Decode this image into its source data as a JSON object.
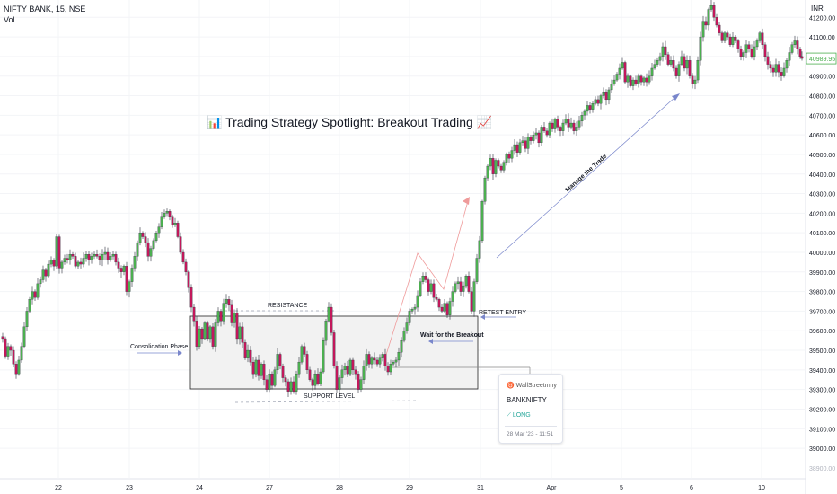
{
  "header": {
    "symbol": "NIFTY BANK, 15, NSE",
    "indicator": "Vol"
  },
  "currency_label": "INR",
  "chart_data": {
    "type": "candlestick",
    "title": "📊 Trading Strategy Spotlight: Breakout Trading 📈",
    "x_tick_labels": [
      "22",
      "23",
      "24",
      "27",
      "28",
      "29",
      "31",
      "Apr",
      "5",
      "6",
      "10"
    ],
    "y_ticks": [
      39000,
      39100,
      39200,
      39300,
      39400,
      39500,
      39600,
      39700,
      39800,
      39900,
      40000,
      40100,
      40200,
      40300,
      40400,
      40500,
      40600,
      40700,
      40800,
      40900,
      41000,
      41100,
      41200
    ],
    "y_bottom_label": "38900.00",
    "ylim": [
      38895,
      41270
    ],
    "grid": true,
    "last_price": "40989.95",
    "up_color": "#4caf50",
    "down_color": "#c2185b",
    "path": [
      [
        0,
        39570
      ],
      [
        3,
        39560
      ],
      [
        6,
        39470
      ],
      [
        9,
        39520
      ],
      [
        12,
        39500
      ],
      [
        15,
        39430
      ],
      [
        18,
        39380
      ],
      [
        21,
        39450
      ],
      [
        24,
        39520
      ],
      [
        27,
        39620
      ],
      [
        30,
        39700
      ],
      [
        33,
        39760
      ],
      [
        36,
        39800
      ],
      [
        39,
        39770
      ],
      [
        42,
        39840
      ],
      [
        45,
        39860
      ],
      [
        48,
        39910
      ],
      [
        51,
        39880
      ],
      [
        54,
        39940
      ],
      [
        57,
        39960
      ],
      [
        60,
        39930
      ],
      [
        63,
        40080
      ],
      [
        66,
        39920
      ],
      [
        69,
        39950
      ],
      [
        72,
        39970
      ],
      [
        75,
        39960
      ],
      [
        78,
        39990
      ],
      [
        81,
        39980
      ],
      [
        84,
        39930
      ],
      [
        87,
        39950
      ],
      [
        90,
        39940
      ],
      [
        93,
        39970
      ],
      [
        96,
        39990
      ],
      [
        99,
        39960
      ],
      [
        102,
        39980
      ],
      [
        105,
        39990
      ],
      [
        108,
        39980
      ],
      [
        111,
        39960
      ],
      [
        114,
        39990
      ],
      [
        117,
        40000
      ],
      [
        120,
        39960
      ],
      [
        123,
        39980
      ],
      [
        126,
        39990
      ],
      [
        129,
        39950
      ],
      [
        132,
        39920
      ],
      [
        135,
        39900
      ],
      [
        138,
        39930
      ],
      [
        141,
        39800
      ],
      [
        144,
        39850
      ],
      [
        147,
        39920
      ],
      [
        150,
        39980
      ],
      [
        153,
        40050
      ],
      [
        156,
        40100
      ],
      [
        159,
        40080
      ],
      [
        162,
        40050
      ],
      [
        165,
        39980
      ],
      [
        168,
        40020
      ],
      [
        171,
        40060
      ],
      [
        174,
        40100
      ],
      [
        177,
        40130
      ],
      [
        180,
        40180
      ],
      [
        183,
        40200
      ],
      [
        186,
        40210
      ],
      [
        189,
        40180
      ],
      [
        192,
        40140
      ],
      [
        195,
        40150
      ],
      [
        198,
        40080
      ],
      [
        201,
        40000
      ],
      [
        204,
        39950
      ],
      [
        207,
        39900
      ],
      [
        210,
        39820
      ],
      [
        213,
        39720
      ],
      [
        216,
        39650
      ],
      [
        219,
        39520
      ],
      [
        222,
        39610
      ],
      [
        225,
        39560
      ],
      [
        228,
        39640
      ],
      [
        231,
        39560
      ],
      [
        234,
        39620
      ],
      [
        237,
        39520
      ],
      [
        240,
        39640
      ],
      [
        243,
        39700
      ],
      [
        246,
        39650
      ],
      [
        249,
        39740
      ],
      [
        252,
        39760
      ],
      [
        255,
        39730
      ],
      [
        258,
        39640
      ],
      [
        261,
        39690
      ],
      [
        264,
        39560
      ],
      [
        267,
        39620
      ],
      [
        270,
        39540
      ],
      [
        273,
        39460
      ],
      [
        276,
        39500
      ],
      [
        279,
        39440
      ],
      [
        282,
        39380
      ],
      [
        285,
        39450
      ],
      [
        288,
        39370
      ],
      [
        291,
        39430
      ],
      [
        294,
        39350
      ],
      [
        297,
        39300
      ],
      [
        300,
        39380
      ],
      [
        303,
        39320
      ],
      [
        306,
        39400
      ],
      [
        309,
        39480
      ],
      [
        312,
        39420
      ],
      [
        315,
        39360
      ],
      [
        318,
        39340
      ],
      [
        321,
        39290
      ],
      [
        324,
        39340
      ],
      [
        327,
        39290
      ],
      [
        330,
        39380
      ],
      [
        333,
        39440
      ],
      [
        336,
        39520
      ],
      [
        339,
        39480
      ],
      [
        342,
        39400
      ],
      [
        345,
        39350
      ],
      [
        348,
        39320
      ],
      [
        351,
        39380
      ],
      [
        354,
        39330
      ],
      [
        357,
        39390
      ],
      [
        360,
        39550
      ],
      [
        363,
        39650
      ],
      [
        366,
        39720
      ],
      [
        369,
        39590
      ],
      [
        372,
        39420
      ],
      [
        375,
        39300
      ],
      [
        378,
        39360
      ],
      [
        381,
        39400
      ],
      [
        384,
        39420
      ],
      [
        387,
        39380
      ],
      [
        390,
        39450
      ],
      [
        393,
        39400
      ],
      [
        396,
        39380
      ],
      [
        399,
        39300
      ],
      [
        402,
        39350
      ],
      [
        405,
        39420
      ],
      [
        408,
        39480
      ],
      [
        411,
        39430
      ],
      [
        414,
        39460
      ],
      [
        417,
        39450
      ],
      [
        420,
        39430
      ],
      [
        423,
        39460
      ],
      [
        426,
        39480
      ],
      [
        429,
        39420
      ],
      [
        432,
        39390
      ],
      [
        435,
        39430
      ],
      [
        438,
        39440
      ],
      [
        441,
        39450
      ],
      [
        444,
        39490
      ],
      [
        447,
        39550
      ],
      [
        450,
        39600
      ],
      [
        453,
        39640
      ],
      [
        456,
        39700
      ],
      [
        459,
        39710
      ],
      [
        462,
        39720
      ],
      [
        465,
        39780
      ],
      [
        468,
        39850
      ],
      [
        471,
        39880
      ],
      [
        474,
        39860
      ],
      [
        477,
        39800
      ],
      [
        480,
        39840
      ],
      [
        483,
        39770
      ],
      [
        486,
        39760
      ],
      [
        489,
        39720
      ],
      [
        492,
        39700
      ],
      [
        495,
        39740
      ],
      [
        498,
        39680
      ],
      [
        501,
        39750
      ],
      [
        504,
        39800
      ],
      [
        507,
        39840
      ],
      [
        510,
        39850
      ],
      [
        513,
        39800
      ],
      [
        516,
        39830
      ],
      [
        519,
        39880
      ],
      [
        522,
        39800
      ],
      [
        525,
        39700
      ],
      [
        528,
        39850
      ],
      [
        531,
        39970
      ],
      [
        534,
        40060
      ],
      [
        537,
        40260
      ],
      [
        540,
        40380
      ],
      [
        543,
        40440
      ],
      [
        546,
        40480
      ],
      [
        549,
        40400
      ],
      [
        552,
        40470
      ],
      [
        555,
        40440
      ],
      [
        558,
        40420
      ],
      [
        561,
        40460
      ],
      [
        564,
        40500
      ],
      [
        567,
        40480
      ],
      [
        570,
        40520
      ],
      [
        573,
        40550
      ],
      [
        576,
        40510
      ],
      [
        579,
        40560
      ],
      [
        582,
        40570
      ],
      [
        585,
        40530
      ],
      [
        588,
        40590
      ],
      [
        591,
        40570
      ],
      [
        594,
        40600
      ],
      [
        597,
        40610
      ],
      [
        600,
        40560
      ],
      [
        603,
        40640
      ],
      [
        606,
        40620
      ],
      [
        609,
        40600
      ],
      [
        612,
        40660
      ],
      [
        615,
        40630
      ],
      [
        618,
        40680
      ],
      [
        621,
        40640
      ],
      [
        624,
        40620
      ],
      [
        627,
        40660
      ],
      [
        630,
        40680
      ],
      [
        633,
        40640
      ],
      [
        636,
        40660
      ],
      [
        639,
        40620
      ],
      [
        642,
        40640
      ],
      [
        645,
        40670
      ],
      [
        648,
        40700
      ],
      [
        651,
        40720
      ],
      [
        654,
        40750
      ],
      [
        657,
        40730
      ],
      [
        660,
        40760
      ],
      [
        663,
        40780
      ],
      [
        666,
        40760
      ],
      [
        669,
        40800
      ],
      [
        672,
        40820
      ],
      [
        675,
        40780
      ],
      [
        678,
        40830
      ],
      [
        681,
        40860
      ],
      [
        684,
        40880
      ],
      [
        687,
        40910
      ],
      [
        690,
        40940
      ],
      [
        693,
        40970
      ],
      [
        696,
        40870
      ],
      [
        699,
        40900
      ],
      [
        702,
        40850
      ],
      [
        705,
        40880
      ],
      [
        708,
        40860
      ],
      [
        711,
        40900
      ],
      [
        714,
        40870
      ],
      [
        717,
        40890
      ],
      [
        720,
        40870
      ],
      [
        723,
        40900
      ],
      [
        726,
        40940
      ],
      [
        729,
        40960
      ],
      [
        732,
        40980
      ],
      [
        735,
        41000
      ],
      [
        738,
        41050
      ],
      [
        741,
        41010
      ],
      [
        744,
        40960
      ],
      [
        747,
        40980
      ],
      [
        750,
        40940
      ],
      [
        753,
        40900
      ],
      [
        756,
        40960
      ],
      [
        759,
        41000
      ],
      [
        762,
        40940
      ],
      [
        765,
        40980
      ],
      [
        768,
        40900
      ],
      [
        771,
        40860
      ],
      [
        774,
        40880
      ],
      [
        777,
        40980
      ],
      [
        780,
        41100
      ],
      [
        783,
        41180
      ],
      [
        786,
        41160
      ],
      [
        789,
        41240
      ],
      [
        792,
        41260
      ],
      [
        795,
        41200
      ],
      [
        798,
        41160
      ],
      [
        801,
        41120
      ],
      [
        804,
        41080
      ],
      [
        807,
        41120
      ],
      [
        810,
        41100
      ],
      [
        813,
        41060
      ],
      [
        816,
        41100
      ],
      [
        819,
        41080
      ],
      [
        822,
        41040
      ],
      [
        825,
        41000
      ],
      [
        828,
        41020
      ],
      [
        831,
        41060
      ],
      [
        834,
        41040
      ],
      [
        837,
        41000
      ],
      [
        840,
        41050
      ],
      [
        843,
        41080
      ],
      [
        846,
        41120
      ],
      [
        849,
        41060
      ],
      [
        852,
        41000
      ],
      [
        855,
        40960
      ],
      [
        858,
        40940
      ],
      [
        861,
        40920
      ],
      [
        864,
        40960
      ],
      [
        867,
        40920
      ],
      [
        870,
        40900
      ],
      [
        873,
        40940
      ],
      [
        876,
        40980
      ],
      [
        879,
        41020
      ],
      [
        882,
        41060
      ],
      [
        885,
        41080
      ],
      [
        888,
        41040
      ],
      [
        891,
        41000
      ],
      [
        893,
        40990
      ]
    ],
    "annotations": {
      "resistance": "RESISTANCE",
      "support": "SUPPORT LEVEL",
      "consolidation": "Consolidation Phase",
      "wait_breakout": "Wait for the Breakout",
      "retest_entry": "RETEST ENTRY",
      "manage_trade": "Manage the Trade"
    }
  },
  "idea_card": {
    "author": "WallStreetmny",
    "symbol": "BANKNIFTY",
    "direction": "⟋ LONG",
    "timestamp": "28 Mar '23 - 11:51"
  }
}
